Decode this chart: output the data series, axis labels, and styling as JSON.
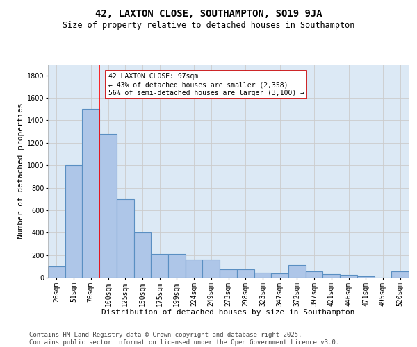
{
  "title1": "42, LAXTON CLOSE, SOUTHAMPTON, SO19 9JA",
  "title2": "Size of property relative to detached houses in Southampton",
  "xlabel": "Distribution of detached houses by size in Southampton",
  "ylabel": "Number of detached properties",
  "categories": [
    "26sqm",
    "51sqm",
    "76sqm",
    "100sqm",
    "125sqm",
    "150sqm",
    "175sqm",
    "199sqm",
    "224sqm",
    "249sqm",
    "273sqm",
    "298sqm",
    "323sqm",
    "347sqm",
    "372sqm",
    "397sqm",
    "421sqm",
    "446sqm",
    "471sqm",
    "495sqm",
    "520sqm"
  ],
  "values": [
    100,
    1000,
    1500,
    1280,
    700,
    400,
    210,
    210,
    160,
    160,
    75,
    75,
    45,
    40,
    110,
    55,
    30,
    25,
    15,
    0,
    55
  ],
  "bar_color": "#aec6e8",
  "bar_edge_color": "#5a8fc2",
  "bar_lw": 0.8,
  "annotation_text": "42 LAXTON CLOSE: 97sqm\n← 43% of detached houses are smaller (2,358)\n56% of semi-detached houses are larger (3,100) →",
  "annotation_box_color": "#ffffff",
  "annotation_box_edge_color": "#cc0000",
  "ylim": [
    0,
    1900
  ],
  "yticks": [
    0,
    200,
    400,
    600,
    800,
    1000,
    1200,
    1400,
    1600,
    1800
  ],
  "grid_color": "#cccccc",
  "bg_color": "#dce9f5",
  "footer": "Contains HM Land Registry data © Crown copyright and database right 2025.\nContains public sector information licensed under the Open Government Licence v3.0.",
  "footer_fontsize": 6.5,
  "title1_fontsize": 10,
  "title2_fontsize": 8.5,
  "xlabel_fontsize": 8,
  "ylabel_fontsize": 8,
  "tick_fontsize": 7,
  "ann_fontsize": 7
}
